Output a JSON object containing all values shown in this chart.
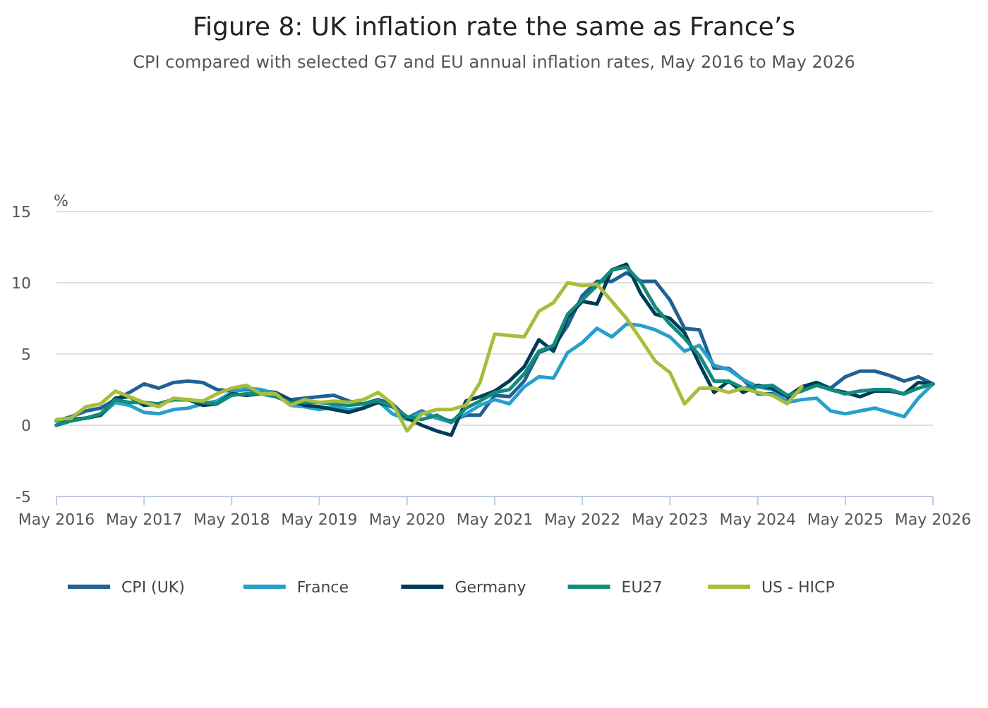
{
  "chart_data": {
    "type": "line",
    "title": "Figure 8: UK inflation rate the same as France’s",
    "subtitle": "CPI compared with selected G7 and EU annual inflation rates, May 2016 to May 2026",
    "ylabel": "%",
    "x": [
      "2016-05",
      "2016-07",
      "2016-09",
      "2016-11",
      "2017-01",
      "2017-03",
      "2017-05",
      "2017-07",
      "2017-09",
      "2017-11",
      "2018-01",
      "2018-03",
      "2018-05",
      "2018-07",
      "2018-09",
      "2018-11",
      "2019-01",
      "2019-03",
      "2019-05",
      "2019-07",
      "2019-09",
      "2019-11",
      "2020-01",
      "2020-03",
      "2020-05",
      "2020-07",
      "2020-09",
      "2020-11",
      "2021-01",
      "2021-03",
      "2021-05",
      "2021-07",
      "2021-09",
      "2021-11",
      "2022-01",
      "2022-03",
      "2022-05",
      "2022-07",
      "2022-09",
      "2022-11",
      "2023-01",
      "2023-03",
      "2023-05",
      "2023-07",
      "2023-09",
      "2023-11",
      "2024-01",
      "2024-03",
      "2024-05",
      "2024-07",
      "2024-09",
      "2024-11",
      "2025-01",
      "2025-03",
      "2025-05",
      "2025-07",
      "2025-09",
      "2025-11",
      "2026-01",
      "2026-03",
      "2026-05"
    ],
    "series": [
      {
        "name": "CPI (UK)",
        "color": "#206095",
        "values": [
          0.3,
          0.6,
          1.0,
          1.2,
          1.8,
          2.3,
          2.9,
          2.6,
          3.0,
          3.1,
          3.0,
          2.5,
          2.4,
          2.5,
          2.4,
          2.3,
          1.8,
          1.9,
          2.0,
          2.1,
          1.7,
          1.5,
          1.8,
          1.5,
          0.5,
          1.0,
          0.5,
          0.3,
          0.7,
          0.7,
          2.1,
          2.0,
          3.1,
          5.1,
          5.5,
          7.0,
          9.1,
          10.1,
          10.1,
          10.7,
          10.1,
          10.1,
          8.8,
          6.8,
          6.7,
          4.0,
          4.0,
          3.2,
          2.2,
          2.2,
          1.7,
          2.6,
          3.0,
          2.6,
          3.4,
          3.8,
          3.8,
          3.5,
          3.1,
          3.4,
          2.9
        ]
      },
      {
        "name": "France",
        "color": "#27a0cc",
        "values": [
          0.3,
          0.4,
          0.5,
          0.7,
          1.6,
          1.4,
          0.9,
          0.8,
          1.1,
          1.2,
          1.5,
          1.7,
          2.3,
          2.6,
          2.5,
          2.2,
          1.4,
          1.3,
          1.1,
          1.3,
          1.1,
          1.2,
          1.7,
          0.8,
          0.4,
          0.9,
          0.5,
          0.2,
          0.8,
          1.4,
          1.8,
          1.5,
          2.7,
          3.4,
          3.3,
          5.1,
          5.8,
          6.8,
          6.2,
          7.1,
          7.0,
          6.7,
          6.2,
          5.2,
          5.6,
          4.2,
          3.9,
          3.2,
          2.7,
          2.5,
          1.6,
          1.8,
          1.9,
          1.0,
          0.8,
          1.0,
          1.2,
          0.9,
          0.6,
          1.9,
          2.9
        ]
      },
      {
        "name": "Germany",
        "color": "#003c57",
        "values": [
          0.0,
          0.4,
          0.5,
          0.7,
          1.9,
          2.0,
          1.4,
          1.5,
          1.8,
          1.8,
          1.4,
          1.5,
          2.2,
          2.1,
          2.2,
          2.2,
          1.7,
          1.4,
          1.3,
          1.1,
          0.9,
          1.2,
          1.6,
          1.3,
          0.5,
          0.0,
          -0.4,
          -0.7,
          1.7,
          2.0,
          2.4,
          3.1,
          4.1,
          6.0,
          5.2,
          7.6,
          8.7,
          8.5,
          10.9,
          11.3,
          9.2,
          7.8,
          7.5,
          6.5,
          4.3,
          2.3,
          3.1,
          2.3,
          2.8,
          2.6,
          2.0,
          2.7,
          3.0,
          2.5,
          2.3,
          2.0,
          2.4,
          2.4,
          2.2,
          3.0,
          2.9
        ]
      },
      {
        "name": "EU27",
        "color": "#118c7b",
        "values": [
          0.0,
          0.3,
          0.5,
          0.8,
          1.8,
          1.6,
          1.6,
          1.5,
          1.8,
          1.8,
          1.6,
          1.5,
          2.1,
          2.2,
          2.2,
          2.0,
          1.6,
          1.6,
          1.6,
          1.5,
          1.4,
          1.5,
          1.7,
          1.3,
          0.6,
          0.4,
          0.7,
          0.2,
          1.2,
          1.7,
          2.3,
          2.5,
          3.6,
          5.2,
          5.6,
          7.8,
          8.8,
          9.8,
          10.9,
          11.1,
          10.0,
          8.3,
          7.1,
          6.1,
          4.9,
          3.1,
          3.1,
          2.6,
          2.7,
          2.8,
          2.1,
          2.4,
          2.8,
          2.5,
          2.2,
          2.4,
          2.5,
          2.5,
          2.2,
          2.6,
          2.9
        ]
      },
      {
        "name": "US - HICP",
        "color": "#a8bd3a",
        "values": [
          0.4,
          0.5,
          1.3,
          1.5,
          2.4,
          2.0,
          1.6,
          1.3,
          1.9,
          1.8,
          1.7,
          2.2,
          2.6,
          2.8,
          2.2,
          2.2,
          1.4,
          1.8,
          1.6,
          1.7,
          1.6,
          1.8,
          2.3,
          1.5,
          -0.4,
          0.8,
          1.1,
          1.1,
          1.4,
          3.0,
          6.4,
          6.3,
          6.2,
          8.0,
          8.6,
          10.0,
          9.8,
          9.9,
          8.7,
          7.5,
          6.0,
          4.5,
          3.7,
          1.5,
          2.6,
          2.6,
          2.3,
          2.6,
          2.3,
          2.1,
          1.5,
          2.7,
          null,
          null,
          null,
          null,
          null,
          null,
          null,
          null,
          null
        ]
      }
    ],
    "xlim": [
      "2016-05",
      "2026-05"
    ],
    "xticks": [
      {
        "value": "2016-05",
        "label": "May 2016"
      },
      {
        "value": "2017-05",
        "label": "May 2017"
      },
      {
        "value": "2018-05",
        "label": "May 2018"
      },
      {
        "value": "2019-05",
        "label": "May 2019"
      },
      {
        "value": "2020-05",
        "label": "May 2020"
      },
      {
        "value": "2021-05",
        "label": "May 2021"
      },
      {
        "value": "2022-05",
        "label": "May 2022"
      },
      {
        "value": "2023-05",
        "label": "May 2023"
      },
      {
        "value": "2024-05",
        "label": "May 2024"
      },
      {
        "value": "2025-05",
        "label": "May 2025"
      },
      {
        "value": "2026-05",
        "label": "May 2026"
      }
    ],
    "ylim": [
      -5,
      15
    ],
    "yticks": [
      -5,
      0,
      5,
      10,
      15
    ],
    "grid": "y",
    "legend": "bottom",
    "line_style": "solid"
  }
}
